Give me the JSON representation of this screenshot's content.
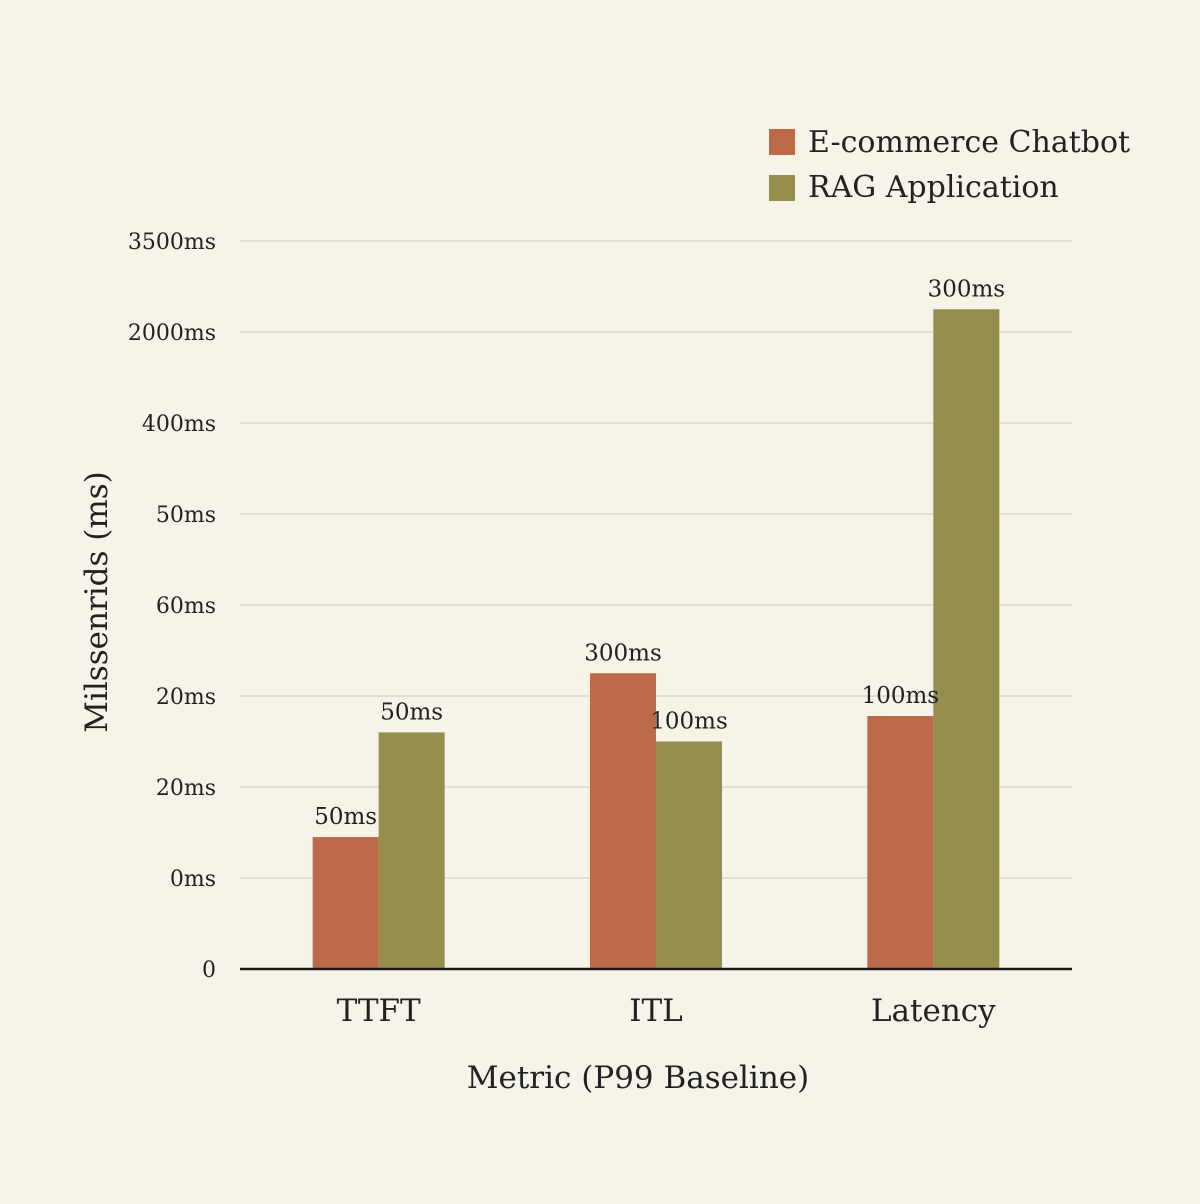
{
  "chart_data": {
    "type": "bar",
    "title": "",
    "xlabel": "Metric (P99 Baseline)",
    "ylabel": "Milssenrids (ms)",
    "categories": [
      "TTFT",
      "ITL",
      "Latency"
    ],
    "y_tick_labels": [
      "0",
      "0ms",
      "20ms",
      "20ms",
      "60ms",
      "50ms",
      "400ms",
      "2000ms",
      "3500ms"
    ],
    "y_tick_values": [
      0,
      1,
      2,
      3,
      4,
      5,
      6,
      7,
      8
    ],
    "ylim": [
      0,
      8
    ],
    "grid": true,
    "legend_position": "top-right",
    "series": [
      {
        "name": "E-commerce Chatbot",
        "color": "#bd6a4b",
        "values": [
          1.45,
          3.25,
          2.78
        ],
        "labels": [
          "50ms",
          "300ms",
          "100ms"
        ]
      },
      {
        "name": "RAG Application",
        "color": "#958e4d",
        "values": [
          2.6,
          2.5,
          7.25
        ],
        "labels": [
          "50ms",
          "100ms",
          "300ms"
        ]
      }
    ]
  }
}
